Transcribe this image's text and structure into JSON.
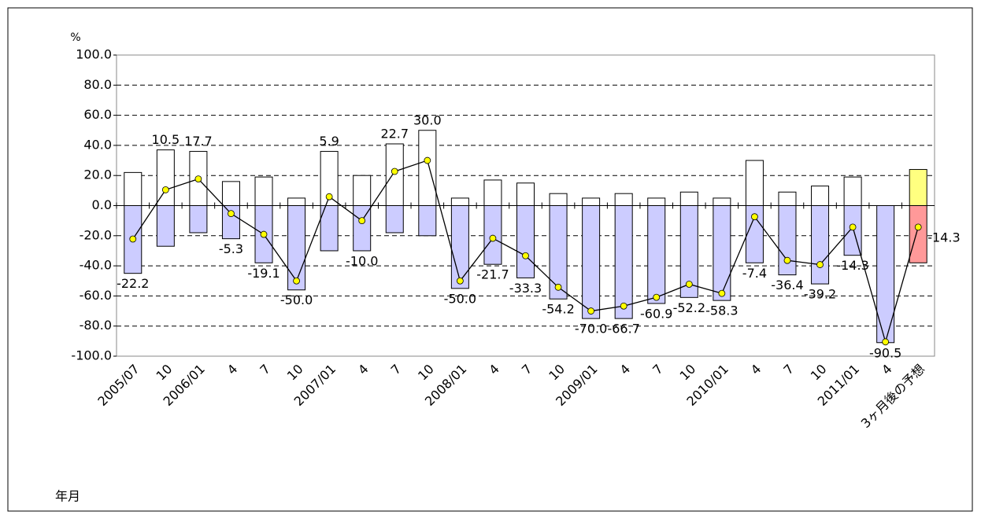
{
  "chart_data": {
    "type": "bar-line",
    "y_unit": "%",
    "x_label": "年月",
    "categories": [
      "2005/07",
      "10",
      "2006/01",
      "4",
      "7",
      "10",
      "2007/01",
      "4",
      "7",
      "10",
      "2008/01",
      "4",
      "7",
      "10",
      "2009/01",
      "4",
      "7",
      "10",
      "2010/01",
      "4",
      "7",
      "10",
      "2011/01",
      "4",
      "3ヶ月後の予想"
    ],
    "series": [
      {
        "type": "bar",
        "color": "#ffffff",
        "forecast_color": "#ffff80",
        "values": [
          22,
          37,
          36,
          16,
          19,
          5,
          36,
          20,
          41,
          50,
          5,
          17,
          15,
          8,
          5,
          8,
          5,
          9,
          5,
          30,
          9,
          13,
          19,
          0,
          24
        ]
      },
      {
        "type": "bar",
        "color": "#ccccff",
        "forecast_color": "#ff9999",
        "values": [
          -45,
          -27,
          -18,
          -22,
          -38,
          -56,
          -30,
          -30,
          -18,
          -20,
          -55,
          -39,
          -48,
          -62,
          -75,
          -75,
          -65,
          -61,
          -63,
          -38,
          -46,
          -52,
          -33,
          -91,
          -38
        ]
      },
      {
        "type": "line",
        "color": "#000000",
        "marker_color": "#ffff00",
        "values": [
          -22.2,
          10.5,
          17.7,
          -5.3,
          -19.1,
          -50.0,
          5.9,
          -10.0,
          22.7,
          30.0,
          -50.0,
          -21.7,
          -33.3,
          -54.2,
          -70.0,
          -66.7,
          -60.9,
          -52.2,
          -58.3,
          -7.4,
          -36.4,
          -39.2,
          -14.3,
          -90.5,
          -14.3
        ],
        "value_labels": [
          "-22.2",
          "10.5",
          "17.7",
          "-5.3",
          "-19.1",
          "-50.0",
          "5.9",
          "-10.0",
          "22.7",
          "30.0",
          "-50.0",
          "-21.7",
          "-33.3",
          "-54.2",
          "-70.0",
          "-66.7",
          "-60.9",
          "-52.2",
          "-58.3",
          "-7.4",
          "-36.4",
          "-39.2",
          "-14.3",
          "-90.5",
          "-14.3"
        ]
      }
    ],
    "ylim": [
      -100,
      100
    ],
    "yticks": [
      {
        "value": -100,
        "label": "-100.0"
      },
      {
        "value": -80,
        "label": "-80.0"
      },
      {
        "value": -60,
        "label": "-60.0"
      },
      {
        "value": -40,
        "label": "-40.0"
      },
      {
        "value": -20,
        "label": "-20.0"
      },
      {
        "value": 0,
        "label": "0.0"
      },
      {
        "value": 20,
        "label": "20.0"
      },
      {
        "value": 40,
        "label": "40.0"
      },
      {
        "value": 60,
        "label": "60.0"
      },
      {
        "value": 80,
        "label": "80.0"
      },
      {
        "value": 100,
        "label": "100.0"
      }
    ],
    "grid": true
  }
}
